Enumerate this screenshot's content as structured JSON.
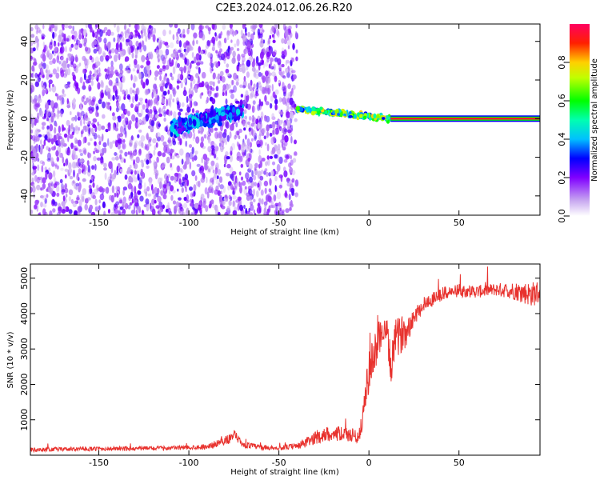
{
  "title": "C2E3.2024.012.06.26.R20",
  "chart_data": [
    {
      "type": "heatmap",
      "xlabel": "Height of straight line (km)",
      "ylabel": "Frequency (Hz)",
      "xlim": [
        -188,
        95
      ],
      "ylim": [
        -50,
        49
      ],
      "xticks": [
        -150,
        -100,
        -50,
        0,
        50
      ],
      "yticks": [
        -40,
        -20,
        0,
        20,
        40
      ],
      "features": [
        {
          "name": "noise-band",
          "x_range": [
            -188,
            -40
          ],
          "y_range": [
            -50,
            49
          ],
          "amplitude": [
            0.05,
            0.25
          ]
        },
        {
          "name": "cluster-1",
          "x_range": [
            -110,
            -70
          ],
          "y_center_start": -5,
          "y_center_end": 5,
          "amplitude": [
            0.2,
            0.45
          ]
        },
        {
          "name": "cluster-2",
          "x_range": [
            -40,
            12
          ],
          "y_center_start": 5,
          "y_center_end": 0,
          "amplitude": [
            0.3,
            0.8
          ]
        },
        {
          "name": "carrier-line",
          "x_range": [
            12,
            95
          ],
          "y_center": 0,
          "amplitude": 0.95
        }
      ],
      "colorbar": {
        "label": "Normalized spectral amplitude",
        "ticks": [
          0.0,
          0.2,
          0.4,
          0.6,
          0.8
        ],
        "tick_labels": [
          "0.0",
          "0.2",
          "0.4",
          "0.6",
          "0.8"
        ],
        "range": [
          0,
          1
        ]
      }
    },
    {
      "type": "line",
      "xlabel": "Height of straight line (km)",
      "ylabel": "SNR (10 * v/v)",
      "xlim": [
        -188,
        95
      ],
      "ylim": [
        0,
        5400
      ],
      "xticks": [
        -150,
        -100,
        -50,
        0,
        50
      ],
      "yticks": [
        1000,
        2000,
        3000,
        4000,
        5000
      ],
      "color": "#e8322e",
      "series": [
        {
          "name": "SNR",
          "x": [
            -188,
            -170,
            -150,
            -130,
            -110,
            -90,
            -80,
            -75,
            -70,
            -60,
            -50,
            -40,
            -35,
            -30,
            -25,
            -20,
            -15,
            -10,
            -5,
            0,
            3,
            5,
            8,
            10,
            12,
            15,
            20,
            25,
            30,
            40,
            50,
            60,
            70,
            80,
            90,
            95
          ],
          "y": [
            150,
            170,
            180,
            190,
            200,
            240,
            400,
            550,
            300,
            220,
            200,
            260,
            350,
            480,
            580,
            620,
            600,
            560,
            560,
            2400,
            2700,
            3300,
            3550,
            3450,
            2500,
            3300,
            3500,
            3900,
            4250,
            4550,
            4650,
            4620,
            4680,
            4650,
            4550,
            4600
          ],
          "noise": [
            60,
            60,
            60,
            60,
            60,
            70,
            120,
            180,
            100,
            70,
            60,
            90,
            150,
            180,
            200,
            220,
            200,
            200,
            220,
            600,
            700,
            500,
            500,
            400,
            600,
            550,
            500,
            250,
            220,
            200,
            180,
            180,
            180,
            250,
            350,
            350
          ]
        }
      ]
    }
  ]
}
